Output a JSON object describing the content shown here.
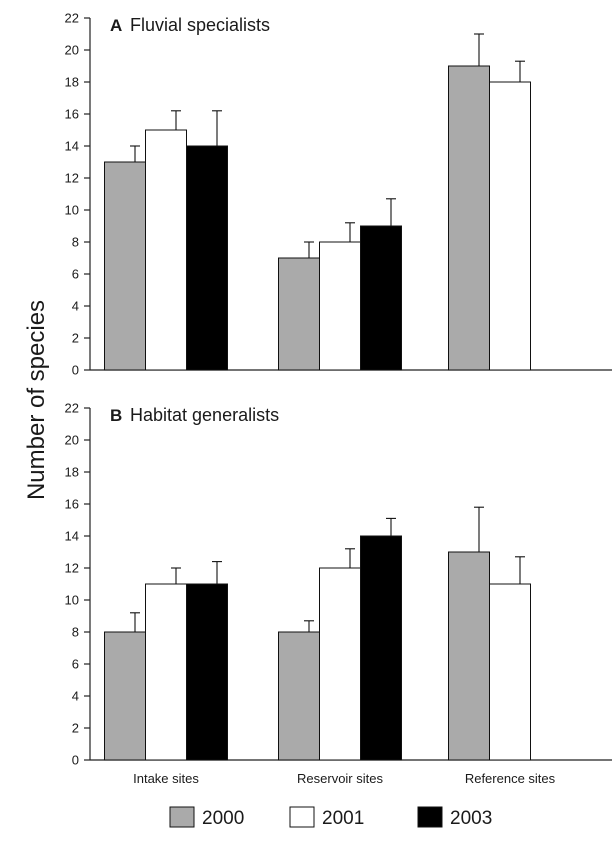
{
  "chart_data": {
    "type": "bar",
    "ylabel": "Number of species",
    "categories": [
      "Intake sites",
      "Reservoir sites",
      "Reference sites"
    ],
    "yticks": [
      0,
      2,
      4,
      6,
      8,
      10,
      12,
      14,
      16,
      18,
      20,
      22
    ],
    "ylim": [
      0,
      22
    ],
    "legend": {
      "placement": "bottom",
      "entries": [
        {
          "label": "2000",
          "color": "#aaaaaa"
        },
        {
          "label": "2001",
          "color": "#ffffff"
        },
        {
          "label": "2003",
          "color": "#000000"
        }
      ]
    },
    "panels": [
      {
        "letter": "A",
        "title": "Fluvial specialists",
        "series": [
          {
            "name": "2000",
            "values": [
              13,
              7,
              19
            ],
            "errors": [
              1,
              1,
              2
            ]
          },
          {
            "name": "2001",
            "values": [
              15,
              8,
              18
            ],
            "errors": [
              1.2,
              1.2,
              1.3
            ]
          },
          {
            "name": "2003",
            "values": [
              14,
              9,
              null
            ],
            "errors": [
              2.2,
              1.7,
              null
            ]
          }
        ]
      },
      {
        "letter": "B",
        "title": "Habitat generalists",
        "series": [
          {
            "name": "2000",
            "values": [
              8,
              8,
              13
            ],
            "errors": [
              1.2,
              0.7,
              2.8
            ]
          },
          {
            "name": "2001",
            "values": [
              11,
              12,
              11
            ],
            "errors": [
              1,
              1.2,
              1.7
            ]
          },
          {
            "name": "2003",
            "values": [
              11,
              14,
              null
            ],
            "errors": [
              1.4,
              1.1,
              null
            ]
          }
        ]
      }
    ]
  }
}
